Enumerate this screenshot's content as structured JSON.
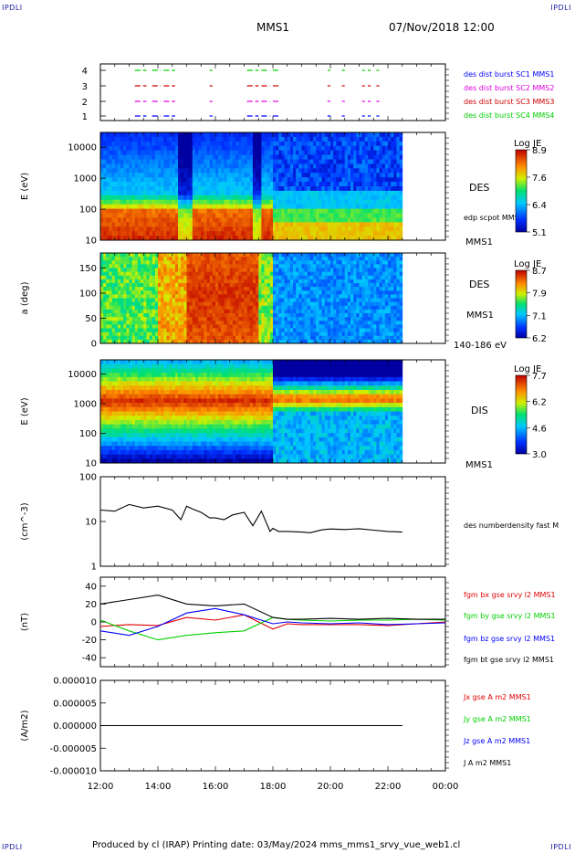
{
  "header": {
    "corner_top_left": "IPDLI",
    "corner_top_right": "IPDLI",
    "corner_bottom_left": "IPDLI",
    "corner_bottom_right": "IPDLI",
    "spacecraft": "MMS1",
    "datetime": "07/Nov/2018 12:00",
    "footer": "Produced by cl (IRAP)   Printing date: 03/May/2024   mms_mms1_srvy_vue_web1.cl"
  },
  "colors": {
    "black": "#000000",
    "red": "#e00000",
    "green": "#00d000",
    "blue": "#0000ff",
    "magenta": "#e000e0",
    "dark_red": "#d00000",
    "navy": "#0000a0"
  },
  "chart_data": [
    {
      "type": "timeline",
      "panel": "burst",
      "yticks": [
        "1",
        "2",
        "3",
        "4"
      ],
      "legend": [
        "des dist burst SC1 MMS1",
        "des dist burst SC2 MMS2",
        "des dist burst SC3 MMS3",
        "des dist burst SC4 MMS4"
      ],
      "legend_colors": [
        "#0000ff",
        "#e000e0",
        "#d00000",
        "#00d000"
      ],
      "intervals": [
        [
          13.2,
          13.6
        ],
        [
          13.8,
          14.1
        ],
        [
          14.2,
          14.6
        ],
        [
          15.8,
          15.9
        ],
        [
          17.1,
          17.5
        ],
        [
          17.6,
          17.9
        ],
        [
          18.0,
          18.2
        ],
        [
          19.9,
          20.0
        ],
        [
          20.4,
          20.5
        ],
        [
          21.1,
          21.2
        ],
        [
          21.3,
          21.4
        ],
        [
          21.6,
          21.7
        ]
      ]
    },
    {
      "type": "heatmap",
      "panel": "des-energy",
      "ylabel": "E (eV)",
      "yticks": [
        "10",
        "100",
        "1000",
        "10000"
      ],
      "ylim": [
        10,
        30000
      ],
      "label": "DES",
      "sublabel": "edp scpot MMS1",
      "bottom_label": "MMS1",
      "colorbar_title": "Log JE",
      "colorbar_ticks": [
        "8.9",
        "7.6",
        "6.4",
        "5.1"
      ],
      "xrange": [
        12.0,
        22.5
      ]
    },
    {
      "type": "heatmap",
      "panel": "des-pitch",
      "ylabel": "a (deg)",
      "yticks": [
        "0",
        "50",
        "100",
        "150"
      ],
      "ylim": [
        0,
        180
      ],
      "label": "DES",
      "sublabel": "MMS1",
      "bottom_label": "140-186 eV",
      "colorbar_title": "Log JE",
      "colorbar_ticks": [
        "8.7",
        "7.9",
        "7.1",
        "6.2"
      ],
      "xrange": [
        12.0,
        22.5
      ]
    },
    {
      "type": "heatmap",
      "panel": "dis-energy",
      "ylabel": "E (eV)",
      "yticks": [
        "10",
        "100",
        "1000",
        "10000"
      ],
      "ylim": [
        10,
        30000
      ],
      "label": "DIS",
      "bottom_label": "MMS1",
      "colorbar_title": "Log JE",
      "colorbar_ticks": [
        "7.7",
        "6.2",
        "4.6",
        "3.0"
      ],
      "xrange": [
        12.0,
        22.5
      ]
    },
    {
      "type": "line",
      "panel": "density",
      "ylabel": "(cm^-3)",
      "yticks": [
        "1",
        "10",
        "100"
      ],
      "ylim": [
        1,
        100
      ],
      "log": true,
      "series": [
        {
          "name": "des numberdensity fast M",
          "color": "#000000",
          "x": [
            12.0,
            12.5,
            13.0,
            13.5,
            14.0,
            14.5,
            14.8,
            15.0,
            15.2,
            15.5,
            15.8,
            16.0,
            16.3,
            16.6,
            17.0,
            17.3,
            17.6,
            17.9,
            18.0,
            18.2,
            18.5,
            19.0,
            19.3,
            19.7,
            20.0,
            20.5,
            21.0,
            21.5,
            22.0,
            22.5
          ],
          "y": [
            18,
            17,
            24,
            20,
            22,
            18,
            11,
            22,
            19,
            16,
            12,
            12,
            11,
            14,
            16,
            8,
            17,
            6,
            7,
            6,
            6,
            5.8,
            5.6,
            6.5,
            6.8,
            6.6,
            6.9,
            6.4,
            6.0,
            5.8
          ]
        }
      ]
    },
    {
      "type": "line",
      "panel": "magnetic-field",
      "ylabel": "(nT)",
      "yticks": [
        "-40",
        "-20",
        "0",
        "20",
        "40"
      ],
      "ylim": [
        -50,
        50
      ],
      "series": [
        {
          "name": "fgm bx gse srvy l2 MMS1",
          "color": "#e00000",
          "x": [
            12,
            13,
            14,
            15,
            16,
            17,
            18,
            18.5,
            19,
            20,
            21,
            22,
            23,
            24
          ],
          "y": [
            -5,
            -3,
            -4,
            5,
            2,
            8,
            -8,
            -2,
            -3,
            -3,
            -3,
            -4,
            -2,
            0
          ]
        },
        {
          "name": "fgm by gse srvy l2 MMS1",
          "color": "#00d000",
          "x": [
            12,
            13,
            14,
            15,
            16,
            17,
            18,
            18.5,
            19,
            20,
            21,
            22,
            23,
            24
          ],
          "y": [
            2,
            -10,
            -20,
            -15,
            -12,
            -10,
            5,
            3,
            2,
            1,
            2,
            2,
            3,
            2
          ]
        },
        {
          "name": "fgm bz gse srvy l2 MMS1",
          "color": "#0000ff",
          "x": [
            12,
            13,
            14,
            15,
            16,
            17,
            18,
            18.5,
            19,
            20,
            21,
            22,
            23,
            24
          ],
          "y": [
            -10,
            -15,
            -5,
            10,
            15,
            8,
            -2,
            0,
            -1,
            -2,
            -1,
            -3,
            -2,
            -1
          ]
        },
        {
          "name": "fgm bt gse srvy l2 MMS1",
          "color": "#000000",
          "x": [
            12,
            13,
            14,
            15,
            16,
            17,
            18,
            18.5,
            19,
            20,
            21,
            22,
            23,
            24
          ],
          "y": [
            20,
            25,
            30,
            20,
            18,
            20,
            5,
            3,
            3,
            4,
            3,
            4,
            3,
            3
          ]
        }
      ]
    },
    {
      "type": "line",
      "panel": "current",
      "ylabel": "(A/m2)",
      "yticks": [
        "-0.000010",
        "-0.000005",
        "0.000000",
        "0.000005",
        "0.000010"
      ],
      "ylim": [
        -1e-05,
        1e-05
      ],
      "series": [
        {
          "name": "Jx gse A m2 MMS1",
          "color": "#e00000",
          "x": [
            12,
            18,
            22.5
          ],
          "y": [
            0,
            0,
            0
          ]
        },
        {
          "name": "Jy gse A m2 MMS1",
          "color": "#00d000",
          "x": [
            12,
            18,
            22.5
          ],
          "y": [
            0,
            0,
            0
          ]
        },
        {
          "name": "Jz gse A m2 MMS1",
          "color": "#0000ff",
          "x": [
            12,
            18,
            22.5
          ],
          "y": [
            0,
            0,
            0
          ]
        },
        {
          "name": "J A m2 MMS1",
          "color": "#000000",
          "x": [
            12,
            18,
            22.5
          ],
          "y": [
            0,
            0,
            0
          ]
        }
      ]
    }
  ],
  "time_axis": {
    "ticks": [
      "12:00",
      "14:00",
      "16:00",
      "18:00",
      "20:00",
      "22:00",
      "00:00"
    ],
    "xlim": [
      12,
      24
    ]
  }
}
